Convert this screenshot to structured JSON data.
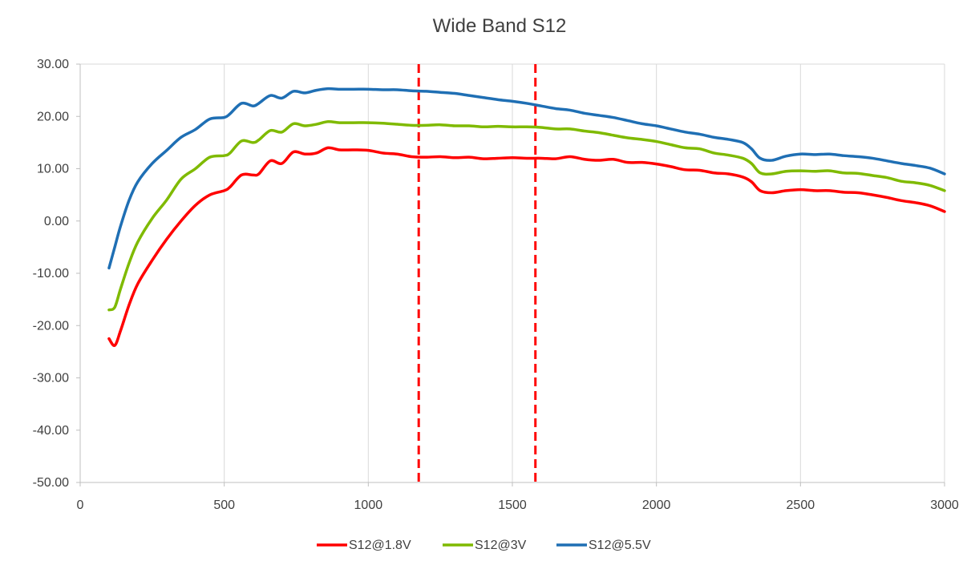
{
  "chart_data": {
    "type": "line",
    "title": "Wide Band S12",
    "xlabel": "",
    "ylabel": "",
    "xlim": [
      0,
      3000
    ],
    "ylim": [
      -50,
      30
    ],
    "x_ticks": [
      0,
      500,
      1000,
      1500,
      2000,
      2500,
      3000
    ],
    "y_ticks": [
      -50,
      -40,
      -30,
      -20,
      -10,
      0,
      10,
      20,
      30
    ],
    "x_tick_labels": [
      "0",
      "500",
      "1000",
      "1500",
      "2000",
      "2500",
      "3000"
    ],
    "y_tick_labels": [
      "-50.00",
      "-40.00",
      "-30.00",
      "-20.00",
      "-10.00",
      "0.00",
      "10.00",
      "20.00",
      "30.00"
    ],
    "grid": "vertical",
    "legend_position": "bottom",
    "reference_lines": [
      {
        "x": 1175,
        "color": "#ff0000",
        "style": "dashed"
      },
      {
        "x": 1580,
        "color": "#ff0000",
        "style": "dashed"
      }
    ],
    "series": [
      {
        "name": "S12@1.8V",
        "color": "#ff0000",
        "points": [
          [
            100,
            -22.5
          ],
          [
            120,
            -23.8
          ],
          [
            140,
            -21
          ],
          [
            170,
            -16
          ],
          [
            200,
            -12
          ],
          [
            250,
            -7.5
          ],
          [
            300,
            -3.5
          ],
          [
            350,
            0
          ],
          [
            400,
            3
          ],
          [
            450,
            5
          ],
          [
            500,
            5.8
          ],
          [
            520,
            6.5
          ],
          [
            560,
            8.8
          ],
          [
            600,
            8.8
          ],
          [
            620,
            9
          ],
          [
            660,
            11.5
          ],
          [
            700,
            11
          ],
          [
            740,
            13.2
          ],
          [
            780,
            12.8
          ],
          [
            820,
            13
          ],
          [
            860,
            14
          ],
          [
            900,
            13.6
          ],
          [
            950,
            13.6
          ],
          [
            1000,
            13.5
          ],
          [
            1050,
            13
          ],
          [
            1100,
            12.8
          ],
          [
            1150,
            12.3
          ],
          [
            1200,
            12.2
          ],
          [
            1250,
            12.3
          ],
          [
            1300,
            12.1
          ],
          [
            1350,
            12.2
          ],
          [
            1400,
            11.9
          ],
          [
            1450,
            12
          ],
          [
            1500,
            12.1
          ],
          [
            1550,
            12
          ],
          [
            1600,
            12
          ],
          [
            1650,
            11.9
          ],
          [
            1700,
            12.3
          ],
          [
            1750,
            11.8
          ],
          [
            1800,
            11.6
          ],
          [
            1850,
            11.8
          ],
          [
            1900,
            11.2
          ],
          [
            1950,
            11.2
          ],
          [
            2000,
            10.9
          ],
          [
            2050,
            10.4
          ],
          [
            2100,
            9.8
          ],
          [
            2150,
            9.7
          ],
          [
            2200,
            9.2
          ],
          [
            2250,
            9
          ],
          [
            2300,
            8.4
          ],
          [
            2330,
            7.5
          ],
          [
            2360,
            5.8
          ],
          [
            2400,
            5.4
          ],
          [
            2450,
            5.8
          ],
          [
            2500,
            6
          ],
          [
            2550,
            5.8
          ],
          [
            2600,
            5.8
          ],
          [
            2650,
            5.5
          ],
          [
            2700,
            5.4
          ],
          [
            2750,
            5
          ],
          [
            2800,
            4.5
          ],
          [
            2850,
            3.9
          ],
          [
            2900,
            3.5
          ],
          [
            2950,
            2.9
          ],
          [
            3000,
            1.8
          ]
        ]
      },
      {
        "name": "S12@3V",
        "color": "#7fba00",
        "points": [
          [
            100,
            -17
          ],
          [
            120,
            -16.5
          ],
          [
            140,
            -13
          ],
          [
            170,
            -8
          ],
          [
            200,
            -4
          ],
          [
            250,
            0.5
          ],
          [
            300,
            4
          ],
          [
            350,
            8
          ],
          [
            400,
            10
          ],
          [
            450,
            12.2
          ],
          [
            500,
            12.5
          ],
          [
            520,
            13
          ],
          [
            560,
            15.3
          ],
          [
            600,
            15
          ],
          [
            620,
            15.5
          ],
          [
            660,
            17.3
          ],
          [
            700,
            17
          ],
          [
            740,
            18.6
          ],
          [
            780,
            18.2
          ],
          [
            820,
            18.5
          ],
          [
            860,
            19
          ],
          [
            900,
            18.8
          ],
          [
            950,
            18.8
          ],
          [
            1000,
            18.8
          ],
          [
            1050,
            18.7
          ],
          [
            1100,
            18.5
          ],
          [
            1150,
            18.3
          ],
          [
            1200,
            18.3
          ],
          [
            1250,
            18.4
          ],
          [
            1300,
            18.2
          ],
          [
            1350,
            18.2
          ],
          [
            1400,
            18
          ],
          [
            1450,
            18.1
          ],
          [
            1500,
            18
          ],
          [
            1550,
            18
          ],
          [
            1600,
            17.9
          ],
          [
            1650,
            17.6
          ],
          [
            1700,
            17.6
          ],
          [
            1750,
            17.2
          ],
          [
            1800,
            16.9
          ],
          [
            1850,
            16.4
          ],
          [
            1900,
            15.9
          ],
          [
            1950,
            15.6
          ],
          [
            2000,
            15.2
          ],
          [
            2050,
            14.6
          ],
          [
            2100,
            14
          ],
          [
            2150,
            13.8
          ],
          [
            2200,
            13
          ],
          [
            2250,
            12.6
          ],
          [
            2300,
            12
          ],
          [
            2330,
            11
          ],
          [
            2360,
            9.2
          ],
          [
            2400,
            9
          ],
          [
            2450,
            9.5
          ],
          [
            2500,
            9.6
          ],
          [
            2550,
            9.5
          ],
          [
            2600,
            9.6
          ],
          [
            2650,
            9.2
          ],
          [
            2700,
            9.1
          ],
          [
            2750,
            8.7
          ],
          [
            2800,
            8.3
          ],
          [
            2850,
            7.6
          ],
          [
            2900,
            7.3
          ],
          [
            2950,
            6.8
          ],
          [
            3000,
            5.8
          ]
        ]
      },
      {
        "name": "S12@5.5V",
        "color": "#1f6fb4",
        "points": [
          [
            100,
            -9
          ],
          [
            120,
            -5
          ],
          [
            140,
            -1
          ],
          [
            170,
            4
          ],
          [
            200,
            7.5
          ],
          [
            250,
            11
          ],
          [
            300,
            13.5
          ],
          [
            350,
            16
          ],
          [
            400,
            17.5
          ],
          [
            450,
            19.5
          ],
          [
            500,
            19.8
          ],
          [
            520,
            20.5
          ],
          [
            560,
            22.5
          ],
          [
            600,
            22
          ],
          [
            620,
            22.5
          ],
          [
            660,
            24
          ],
          [
            700,
            23.5
          ],
          [
            740,
            24.8
          ],
          [
            780,
            24.5
          ],
          [
            820,
            25
          ],
          [
            860,
            25.3
          ],
          [
            900,
            25.2
          ],
          [
            950,
            25.2
          ],
          [
            1000,
            25.2
          ],
          [
            1050,
            25.1
          ],
          [
            1100,
            25.1
          ],
          [
            1150,
            24.9
          ],
          [
            1200,
            24.8
          ],
          [
            1250,
            24.6
          ],
          [
            1300,
            24.4
          ],
          [
            1350,
            24
          ],
          [
            1400,
            23.6
          ],
          [
            1450,
            23.2
          ],
          [
            1500,
            22.9
          ],
          [
            1550,
            22.5
          ],
          [
            1600,
            22
          ],
          [
            1650,
            21.5
          ],
          [
            1700,
            21.2
          ],
          [
            1750,
            20.6
          ],
          [
            1800,
            20.2
          ],
          [
            1850,
            19.8
          ],
          [
            1900,
            19.2
          ],
          [
            1950,
            18.6
          ],
          [
            2000,
            18.2
          ],
          [
            2050,
            17.6
          ],
          [
            2100,
            17
          ],
          [
            2150,
            16.6
          ],
          [
            2200,
            16
          ],
          [
            2250,
            15.6
          ],
          [
            2300,
            15
          ],
          [
            2330,
            13.8
          ],
          [
            2360,
            12
          ],
          [
            2400,
            11.6
          ],
          [
            2450,
            12.4
          ],
          [
            2500,
            12.8
          ],
          [
            2550,
            12.7
          ],
          [
            2600,
            12.8
          ],
          [
            2650,
            12.5
          ],
          [
            2700,
            12.3
          ],
          [
            2750,
            12
          ],
          [
            2800,
            11.5
          ],
          [
            2850,
            11
          ],
          [
            2900,
            10.6
          ],
          [
            2950,
            10.1
          ],
          [
            3000,
            9
          ]
        ]
      }
    ]
  }
}
